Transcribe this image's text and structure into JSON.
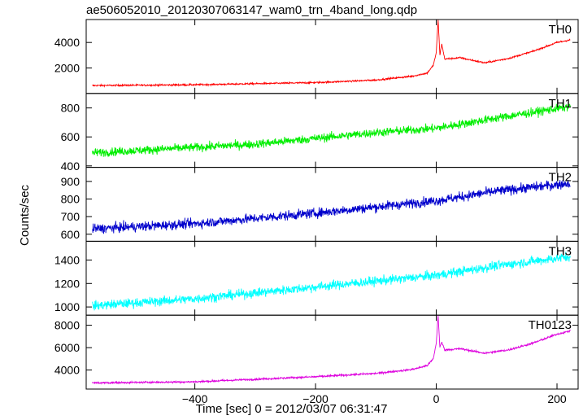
{
  "chart_data": {
    "type": "line",
    "title": "ae506052010_20120307063147_wam0_trn_4band_long.qdp",
    "ylabel": "Counts/sec",
    "xlabel": "Time [sec] 0 = 2012/03/07 06:31:47",
    "xlim": [
      -580,
      235
    ],
    "x_ticks": [
      -400,
      -200,
      0,
      200
    ],
    "x_tick_labels": [
      "−400",
      "−200",
      "0",
      "200"
    ],
    "grid": false,
    "panels": [
      {
        "label": "TH0",
        "color": "#ff0000",
        "ylim": [
          0,
          5800
        ],
        "y_ticks": [
          2000,
          4000
        ],
        "series": [
          {
            "points": [
              [
                -570,
                620
              ],
              [
                -400,
                680
              ],
              [
                -200,
                850
              ],
              [
                -100,
                1050
              ],
              [
                -40,
                1350
              ],
              [
                -15,
                1600
              ],
              [
                -5,
                2200
              ],
              [
                0,
                3200
              ],
              [
                3,
                5800
              ],
              [
                6,
                3000
              ],
              [
                9,
                3900
              ],
              [
                14,
                2700
              ],
              [
                40,
                2800
              ],
              [
                80,
                2400
              ],
              [
                120,
                2750
              ],
              [
                160,
                3300
              ],
              [
                200,
                4000
              ],
              [
                222,
                4200
              ]
            ],
            "noise": 60
          }
        ]
      },
      {
        "label": "TH1",
        "color": "#00ee00",
        "ylim": [
          390,
          900
        ],
        "y_ticks": [
          400,
          600,
          800
        ],
        "series": [
          {
            "points": [
              [
                -570,
                490
              ],
              [
                -300,
                550
              ],
              [
                -100,
                630
              ],
              [
                0,
                660
              ],
              [
                100,
                730
              ],
              [
                222,
                810
              ]
            ],
            "noise": 28
          }
        ]
      },
      {
        "label": "TH2",
        "color": "#0000cc",
        "ylim": [
          560,
          980
        ],
        "y_ticks": [
          600,
          700,
          800,
          900
        ],
        "series": [
          {
            "points": [
              [
                -570,
                630
              ],
              [
                -400,
                660
              ],
              [
                -200,
                720
              ],
              [
                0,
                790
              ],
              [
                100,
                845
              ],
              [
                222,
                890
              ]
            ],
            "noise": 26
          }
        ]
      },
      {
        "label": "TH3",
        "color": "#00ffff",
        "ylim": [
          930,
          1560
        ],
        "y_ticks": [
          1000,
          1200,
          1400
        ],
        "series": [
          {
            "points": [
              [
                -570,
                1010
              ],
              [
                -400,
                1070
              ],
              [
                -200,
                1170
              ],
              [
                0,
                1270
              ],
              [
                100,
                1350
              ],
              [
                222,
                1430
              ]
            ],
            "noise": 38
          }
        ]
      },
      {
        "label": "TH0123",
        "color": "#dd00dd",
        "ylim": [
          2300,
          8900
        ],
        "y_ticks": [
          4000,
          6000,
          8000
        ],
        "series": [
          {
            "points": [
              [
                -570,
                2850
              ],
              [
                -400,
                2950
              ],
              [
                -200,
                3400
              ],
              [
                -100,
                3700
              ],
              [
                -40,
                4050
              ],
              [
                -15,
                4400
              ],
              [
                -5,
                5000
              ],
              [
                0,
                6400
              ],
              [
                3,
                8900
              ],
              [
                6,
                6000
              ],
              [
                9,
                6500
              ],
              [
                14,
                5800
              ],
              [
                40,
                5900
              ],
              [
                80,
                5500
              ],
              [
                120,
                5800
              ],
              [
                160,
                6400
              ],
              [
                200,
                7200
              ],
              [
                222,
                7500
              ]
            ],
            "noise": 80
          }
        ]
      }
    ]
  }
}
